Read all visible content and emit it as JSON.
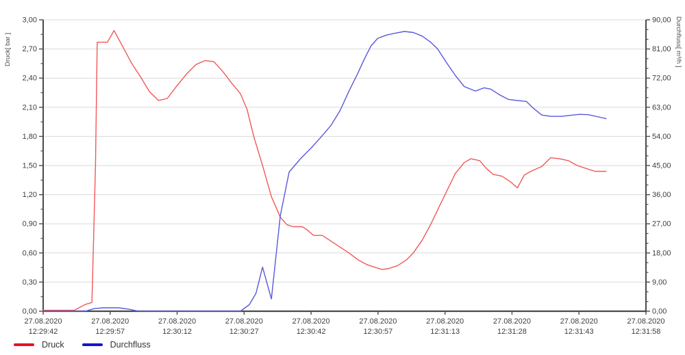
{
  "chart_data": {
    "type": "line",
    "title": "",
    "grid": "horizontal-only",
    "colors": {
      "grid": "#d9d9d9",
      "axis": "#4a4a4a",
      "tick_text": "#3d3d3d"
    },
    "x_axis": {
      "date_label": "27.08.2020",
      "tick_times": [
        "12:29:42",
        "12:29:57",
        "12:30:12",
        "12:30:27",
        "12:30:42",
        "12:30:57",
        "12:31:13",
        "12:31:28",
        "12:31:43",
        "12:31:58"
      ],
      "total_seconds": 136
    },
    "y_left": {
      "label": "Druck[ bar ]",
      "min": 0,
      "max": 3,
      "tick_labels": [
        "3,00",
        "2,70",
        "2,40",
        "2,10",
        "1,80",
        "1,50",
        "1,20",
        "0,90",
        "0,60",
        "0,30",
        "0,00"
      ],
      "minor_per_interval": 1
    },
    "y_right": {
      "label": "Durchfluss[ m³/h ]",
      "min": 0,
      "max": 90,
      "tick_labels": [
        "90,00",
        "81,00",
        "72,00",
        "63,00",
        "54,00",
        "45,00",
        "36,00",
        "27,00",
        "18,00",
        "9,00",
        "0,00"
      ],
      "minor_per_interval": 2
    },
    "series": [
      {
        "name": "Druck",
        "unit": "bar",
        "axis": "left",
        "line_color": "#f25757",
        "legend_color": "#e81123",
        "points": [
          [
            0,
            0.01
          ],
          [
            7,
            0.01
          ],
          [
            9.5,
            0.07
          ],
          [
            11,
            0.09
          ],
          [
            11.8,
            1.5
          ],
          [
            12.2,
            2.77
          ],
          [
            14.5,
            2.77
          ],
          [
            16,
            2.89
          ],
          [
            18,
            2.72
          ],
          [
            20,
            2.55
          ],
          [
            22,
            2.41
          ],
          [
            24,
            2.26
          ],
          [
            26,
            2.17
          ],
          [
            28,
            2.19
          ],
          [
            30,
            2.31
          ],
          [
            32.5,
            2.45
          ],
          [
            34.5,
            2.54
          ],
          [
            36.5,
            2.58
          ],
          [
            38.5,
            2.57
          ],
          [
            40.5,
            2.47
          ],
          [
            42.5,
            2.35
          ],
          [
            44.5,
            2.24
          ],
          [
            46,
            2.08
          ],
          [
            47.5,
            1.8
          ],
          [
            49.5,
            1.5
          ],
          [
            51.5,
            1.18
          ],
          [
            53.5,
            0.97
          ],
          [
            55,
            0.89
          ],
          [
            56.5,
            0.87
          ],
          [
            58.5,
            0.87
          ],
          [
            59.5,
            0.84
          ],
          [
            61,
            0.78
          ],
          [
            63,
            0.78
          ],
          [
            65,
            0.72
          ],
          [
            67,
            0.66
          ],
          [
            69,
            0.6
          ],
          [
            71,
            0.53
          ],
          [
            73,
            0.48
          ],
          [
            75,
            0.45
          ],
          [
            76.5,
            0.43
          ],
          [
            78,
            0.44
          ],
          [
            80,
            0.47
          ],
          [
            82,
            0.53
          ],
          [
            83.5,
            0.6
          ],
          [
            85.5,
            0.73
          ],
          [
            87.5,
            0.9
          ],
          [
            89.5,
            1.09
          ],
          [
            91,
            1.23
          ],
          [
            93,
            1.42
          ],
          [
            95,
            1.53
          ],
          [
            96.5,
            1.57
          ],
          [
            98.5,
            1.55
          ],
          [
            100,
            1.47
          ],
          [
            101.5,
            1.41
          ],
          [
            103.5,
            1.39
          ],
          [
            105.5,
            1.33
          ],
          [
            107,
            1.27
          ],
          [
            108.5,
            1.4
          ],
          [
            110,
            1.44
          ],
          [
            112.5,
            1.49
          ],
          [
            114.5,
            1.58
          ],
          [
            116.5,
            1.57
          ],
          [
            118.5,
            1.55
          ],
          [
            120.5,
            1.5
          ],
          [
            122.5,
            1.47
          ],
          [
            124.5,
            1.44
          ],
          [
            127,
            1.44
          ]
        ]
      },
      {
        "name": "Durchfluss",
        "unit": "m³/h",
        "axis": "right",
        "line_color": "#5757dc",
        "legend_color": "#1414cf",
        "points": [
          [
            0,
            0
          ],
          [
            9.5,
            0
          ],
          [
            11.5,
            0.8
          ],
          [
            13.5,
            1.05
          ],
          [
            17,
            1.05
          ],
          [
            19.5,
            0.6
          ],
          [
            21.5,
            0
          ],
          [
            44.5,
            0
          ],
          [
            46.5,
            2
          ],
          [
            48,
            5.5
          ],
          [
            49.5,
            13.6
          ],
          [
            51.5,
            3.8
          ],
          [
            53.5,
            29.5
          ],
          [
            55.5,
            43
          ],
          [
            58,
            47
          ],
          [
            60.5,
            50.5
          ],
          [
            62.5,
            53.5
          ],
          [
            65,
            57.5
          ],
          [
            67,
            62
          ],
          [
            69,
            68
          ],
          [
            71,
            73.5
          ],
          [
            72.5,
            78
          ],
          [
            74,
            82
          ],
          [
            75.5,
            84.3
          ],
          [
            77.5,
            85.3
          ],
          [
            79.5,
            85.9
          ],
          [
            81.5,
            86.4
          ],
          [
            83.5,
            86.1
          ],
          [
            85.5,
            85
          ],
          [
            87.5,
            83
          ],
          [
            89,
            81
          ],
          [
            91,
            76.8
          ],
          [
            93,
            72.8
          ],
          [
            95,
            69.4
          ],
          [
            97.5,
            68
          ],
          [
            99.5,
            69
          ],
          [
            101,
            68.6
          ],
          [
            103,
            66.8
          ],
          [
            105,
            65.4
          ],
          [
            107.5,
            65
          ],
          [
            109,
            64.8
          ],
          [
            110.5,
            62.8
          ],
          [
            112.5,
            60.6
          ],
          [
            114.5,
            60.2
          ],
          [
            117,
            60.2
          ],
          [
            119,
            60.5
          ],
          [
            121,
            60.8
          ],
          [
            123,
            60.7
          ],
          [
            125,
            60.1
          ],
          [
            127,
            59.5
          ]
        ]
      }
    ]
  },
  "legend": {
    "items": [
      {
        "label": "Druck"
      },
      {
        "label": "Durchfluss"
      }
    ]
  }
}
